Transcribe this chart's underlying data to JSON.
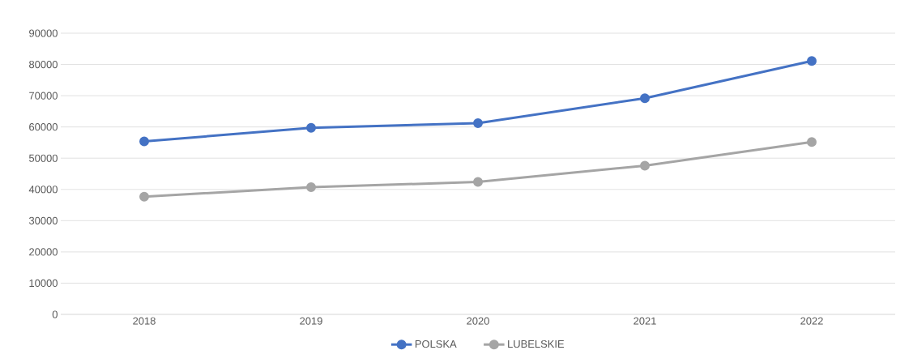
{
  "chart_data": {
    "type": "line",
    "categories": [
      "2018",
      "2019",
      "2020",
      "2021",
      "2022"
    ],
    "series": [
      {
        "name": "POLSKA",
        "color": "#4472c4",
        "values": [
          55400,
          59700,
          61200,
          69200,
          81100
        ]
      },
      {
        "name": "LUBELSKIE",
        "color": "#a5a5a5",
        "values": [
          37700,
          40700,
          42400,
          47600,
          55200
        ]
      }
    ],
    "ylim": [
      0,
      90000
    ],
    "yticks": [
      0,
      10000,
      20000,
      30000,
      40000,
      50000,
      60000,
      70000,
      80000,
      90000
    ],
    "grid": "y",
    "legend": "bottom",
    "marker": "circle",
    "line_style": "solid"
  }
}
